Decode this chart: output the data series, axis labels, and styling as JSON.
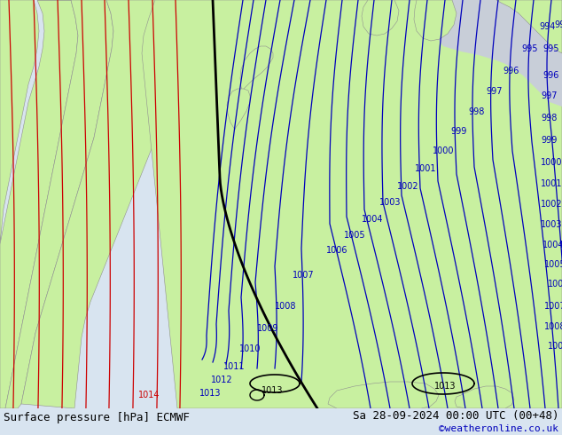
{
  "title_left": "Surface pressure [hPa] ECMWF",
  "title_right": "Sa 28-09-2024 00:00 UTC (00+48)",
  "credit": "©weatheronline.co.uk",
  "ocean_color": "#c8ced8",
  "land_color": "#c8f0a0",
  "coast_color": "#909090",
  "footer_bg": "#d8e4f0",
  "blue": "#0000bb",
  "black": "#000000",
  "red": "#cc0000",
  "title_fontsize": 9,
  "label_fontsize": 7,
  "credit_fontsize": 8
}
